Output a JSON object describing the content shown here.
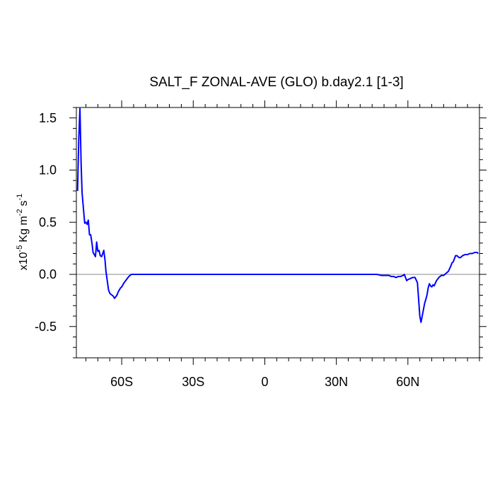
{
  "chart_data": {
    "type": "line",
    "title": "SALT_F ZONAL-AVE (GLO) b.day2.1 [1-3]",
    "ylabel": {
      "prefix": "x10",
      "exp": "-5",
      "unit": "Kg m",
      "unit_exp": "-2",
      "unit2": "s",
      "unit2_exp": "-1"
    },
    "xlim": [
      -79,
      90
    ],
    "ylim": [
      -0.8,
      1.6
    ],
    "x_ticks": [
      {
        "value": -60,
        "label": "60S"
      },
      {
        "value": -30,
        "label": "30S"
      },
      {
        "value": 0,
        "label": "0"
      },
      {
        "value": 30,
        "label": "30N"
      },
      {
        "value": 60,
        "label": "60N"
      }
    ],
    "y_ticks": [
      {
        "value": 1.5,
        "label": "1.5"
      },
      {
        "value": 1.0,
        "label": "1.0"
      },
      {
        "value": 0.5,
        "label": "0.5"
      },
      {
        "value": 0.0,
        "label": "0.0"
      },
      {
        "value": -0.5,
        "label": "-0.5"
      }
    ],
    "x_minor_step": 5,
    "y_minor_step": 0.1,
    "reference_line": 0,
    "grid": false,
    "colors": {
      "line": "#0000ff",
      "reference": "#888888",
      "frame": "#000000"
    },
    "series": [
      {
        "x": [
          -78.5,
          -78.0,
          -77.5,
          -77.0,
          -76.6,
          -76.0,
          -75.5,
          -75.0,
          -74.5,
          -74.0,
          -73.5,
          -73.0,
          -72.4,
          -72.0,
          -71.0,
          -70.5,
          -70.0,
          -69.5,
          -69.0,
          -68.4,
          -67.5,
          -67.0,
          -66.6,
          -66.0,
          -65.5,
          -65.0,
          -64.6,
          -64.0,
          -63.5,
          -63.0,
          -62.0,
          -61.5,
          -61.0,
          -60.5,
          -60.0,
          -59.0,
          -58.0,
          -57.0,
          -56.5,
          -56.0,
          -55.5,
          -55.0,
          -54.5,
          -54.0,
          -53.0,
          -50.0,
          -40.0,
          -30.0,
          -20.0,
          -10.0,
          0.0,
          10.0,
          20.0,
          30.0,
          40.0,
          45.0,
          47.0,
          49.0,
          50.0,
          52.0,
          53.0,
          54.0,
          55.0,
          56.0,
          57.0,
          58.0,
          58.5,
          59.0,
          59.5,
          60.0,
          61.0,
          62.0,
          63.0,
          64.0,
          65.0,
          65.5,
          66.0,
          67.0,
          68.0,
          68.5,
          69.0,
          69.5,
          70.0,
          70.5,
          71.0,
          72.0,
          73.0,
          74.0,
          75.0,
          76.0,
          77.0,
          78.0,
          78.5,
          79.0,
          79.5,
          80.0,
          80.5,
          81.0,
          81.5,
          82.0,
          82.5,
          83.0,
          84.0,
          85.0,
          86.0,
          87.0,
          88.0,
          89.0,
          89.5
        ],
        "y": [
          0.8,
          1.3,
          1.59,
          1.05,
          0.78,
          0.62,
          0.49,
          0.5,
          0.48,
          0.52,
          0.38,
          0.38,
          0.29,
          0.21,
          0.17,
          0.31,
          0.22,
          0.23,
          0.18,
          0.17,
          0.23,
          0.14,
          0.03,
          -0.07,
          -0.15,
          -0.18,
          -0.19,
          -0.2,
          -0.21,
          -0.23,
          -0.2,
          -0.17,
          -0.15,
          -0.13,
          -0.12,
          -0.08,
          -0.05,
          -0.02,
          -0.01,
          0.0,
          0.0,
          0.0,
          0.0,
          0.0,
          0.0,
          0.0,
          0.0,
          0.0,
          0.0,
          0.0,
          0.0,
          0.0,
          0.0,
          0.0,
          0.0,
          0.0,
          0.0,
          -0.01,
          -0.01,
          -0.01,
          -0.02,
          -0.02,
          -0.03,
          -0.02,
          -0.02,
          -0.01,
          0.0,
          -0.03,
          -0.06,
          -0.05,
          -0.04,
          -0.03,
          -0.03,
          -0.08,
          -0.4,
          -0.46,
          -0.4,
          -0.28,
          -0.2,
          -0.13,
          -0.09,
          -0.11,
          -0.12,
          -0.1,
          -0.11,
          -0.06,
          -0.03,
          -0.01,
          -0.01,
          0.01,
          0.03,
          0.08,
          0.11,
          0.12,
          0.15,
          0.18,
          0.18,
          0.17,
          0.16,
          0.16,
          0.17,
          0.18,
          0.19,
          0.19,
          0.2,
          0.2,
          0.21,
          0.21,
          0.2
        ]
      }
    ]
  }
}
